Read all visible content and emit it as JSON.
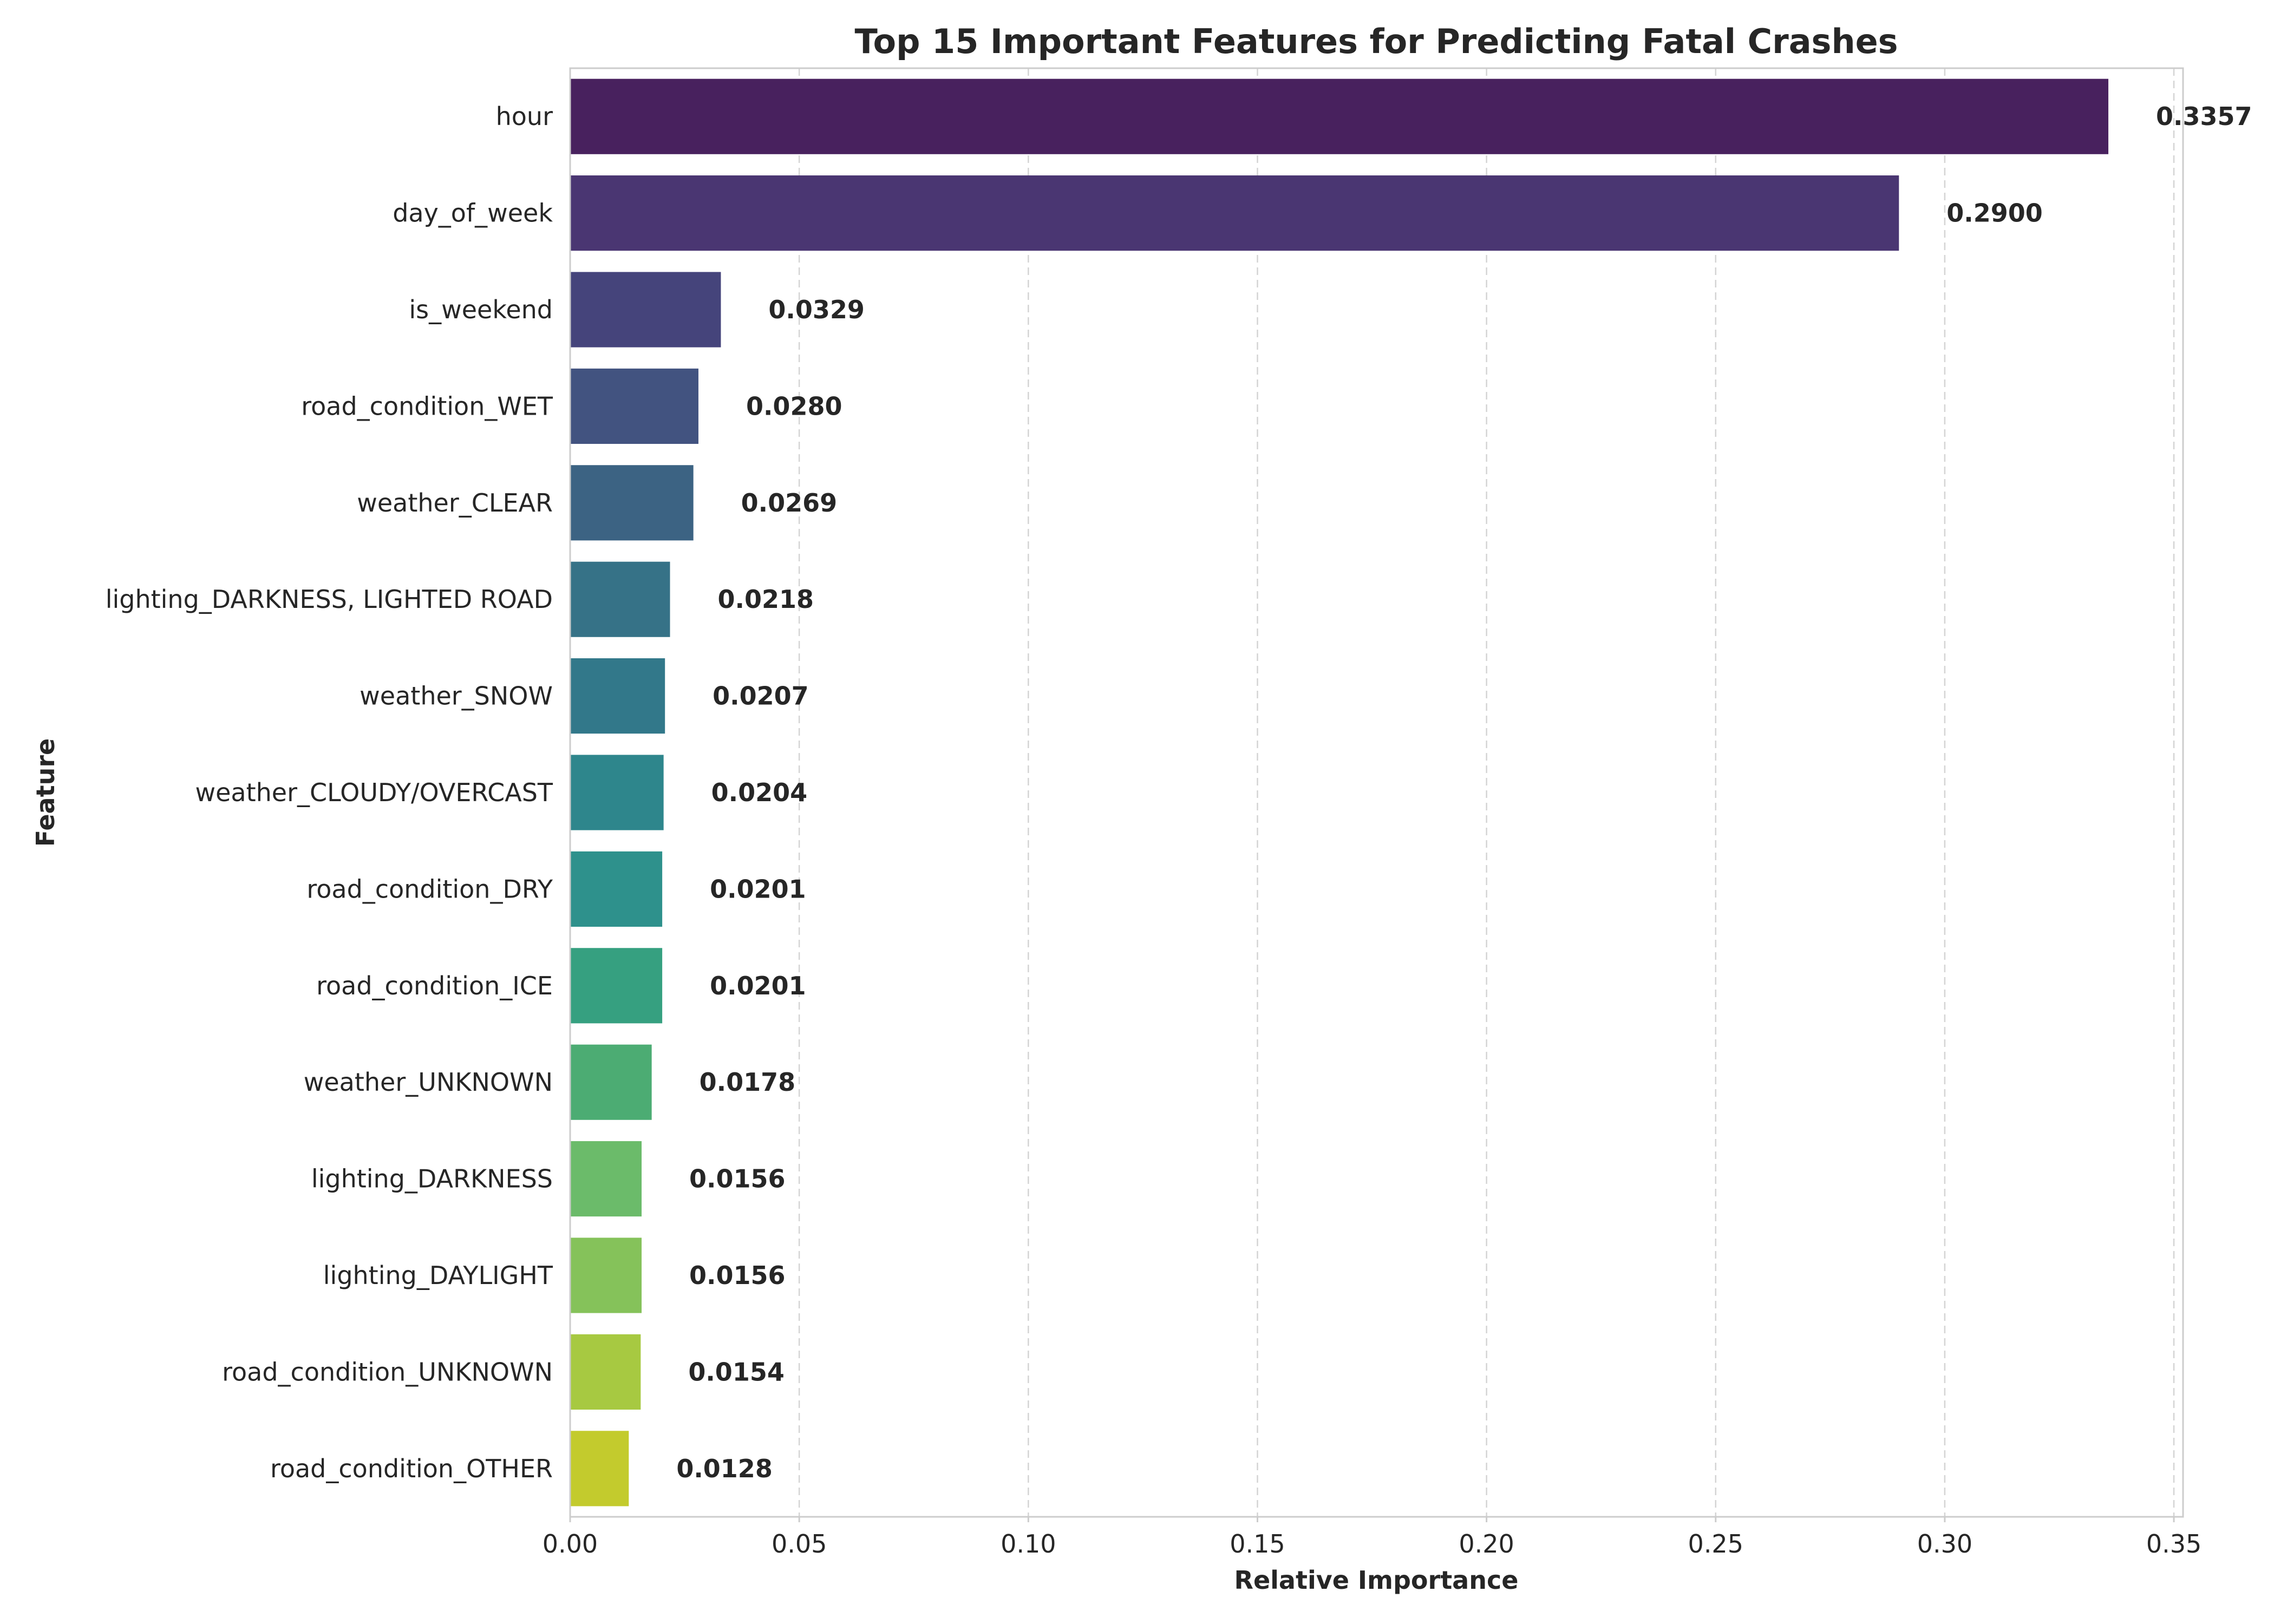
{
  "chart_data": {
    "type": "bar",
    "orientation": "horizontal",
    "title": "Top 15 Important Features for Predicting Fatal Crashes",
    "xlabel": "Relative Importance",
    "ylabel": "Feature",
    "xlim": [
      0,
      0.352
    ],
    "x_ticks": [
      0.0,
      0.05,
      0.1,
      0.15,
      0.2,
      0.25,
      0.3,
      0.35
    ],
    "x_tick_labels": [
      "0.00",
      "0.05",
      "0.10",
      "0.15",
      "0.20",
      "0.25",
      "0.30",
      "0.35"
    ],
    "grid": "vertical dashed",
    "categories": [
      "hour",
      "day_of_week",
      "is_weekend",
      "road_condition_WET",
      "weather_CLEAR",
      "lighting_DARKNESS, LIGHTED ROAD",
      "weather_SNOW",
      "weather_CLOUDY/OVERCAST",
      "road_condition_DRY",
      "road_condition_ICE",
      "weather_UNKNOWN",
      "lighting_DARKNESS",
      "lighting_DAYLIGHT",
      "road_condition_UNKNOWN",
      "road_condition_OTHER"
    ],
    "values": [
      0.3357,
      0.29,
      0.0329,
      0.028,
      0.0269,
      0.0218,
      0.0207,
      0.0204,
      0.0201,
      0.0201,
      0.0178,
      0.0156,
      0.0156,
      0.0154,
      0.0128
    ],
    "value_labels": [
      "0.3357",
      "0.2900",
      "0.0329",
      "0.0280",
      "0.0269",
      "0.0218",
      "0.0207",
      "0.0204",
      "0.0201",
      "0.0201",
      "0.0178",
      "0.0156",
      "0.0156",
      "0.0154",
      "0.0128"
    ],
    "colors": [
      "#48215e",
      "#4a3672",
      "#45447b",
      "#425380",
      "#3c6383",
      "#367287",
      "#32788a",
      "#2e868c",
      "#2e918c",
      "#36a080",
      "#4cac73",
      "#6bbb6a",
      "#85c25a",
      "#a7c941",
      "#c3cb2d"
    ],
    "colormap": "viridis"
  }
}
